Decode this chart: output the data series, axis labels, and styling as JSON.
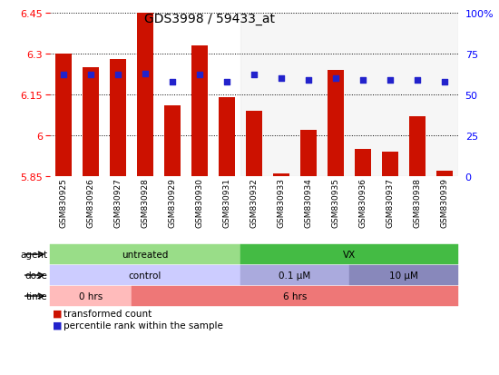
{
  "title": "GDS3998 / 59433_at",
  "samples": [
    "GSM830925",
    "GSM830926",
    "GSM830927",
    "GSM830928",
    "GSM830929",
    "GSM830930",
    "GSM830931",
    "GSM830932",
    "GSM830933",
    "GSM830934",
    "GSM830935",
    "GSM830936",
    "GSM830937",
    "GSM830938",
    "GSM830939"
  ],
  "bar_values": [
    6.3,
    6.25,
    6.28,
    6.45,
    6.11,
    6.33,
    6.14,
    6.09,
    5.86,
    6.02,
    6.24,
    5.95,
    5.94,
    6.07,
    5.87
  ],
  "dot_values": [
    62,
    62,
    62,
    63,
    58,
    62,
    58,
    62,
    60,
    59,
    60,
    59,
    59,
    59,
    58
  ],
  "bar_color": "#cc1100",
  "dot_color": "#2222cc",
  "ymin": 5.85,
  "ymax": 6.45,
  "yticks": [
    5.85,
    6.0,
    6.15,
    6.3,
    6.45
  ],
  "ytick_labels": [
    "5.85",
    "6",
    "6.15",
    "6.3",
    "6.45"
  ],
  "right_yticks": [
    0,
    25,
    50,
    75,
    100
  ],
  "right_ytick_labels": [
    "0",
    "25",
    "50",
    "75",
    "100%"
  ],
  "agent_labels": [
    {
      "text": "untreated",
      "start": 0,
      "end": 7,
      "color": "#99dd88"
    },
    {
      "text": "VX",
      "start": 7,
      "end": 15,
      "color": "#44bb44"
    }
  ],
  "dose_labels": [
    {
      "text": "control",
      "start": 0,
      "end": 7,
      "color": "#ccccff"
    },
    {
      "text": "0.1 μM",
      "start": 7,
      "end": 11,
      "color": "#aaaadd"
    },
    {
      "text": "10 μM",
      "start": 11,
      "end": 15,
      "color": "#8888bb"
    }
  ],
  "time_labels": [
    {
      "text": "0 hrs",
      "start": 0,
      "end": 3,
      "color": "#ffbbbb"
    },
    {
      "text": "6 hrs",
      "start": 3,
      "end": 15,
      "color": "#ee7777"
    }
  ],
  "legend_items": [
    {
      "color": "#cc1100",
      "label": "transformed count"
    },
    {
      "color": "#2222cc",
      "label": "percentile rank within the sample"
    }
  ]
}
